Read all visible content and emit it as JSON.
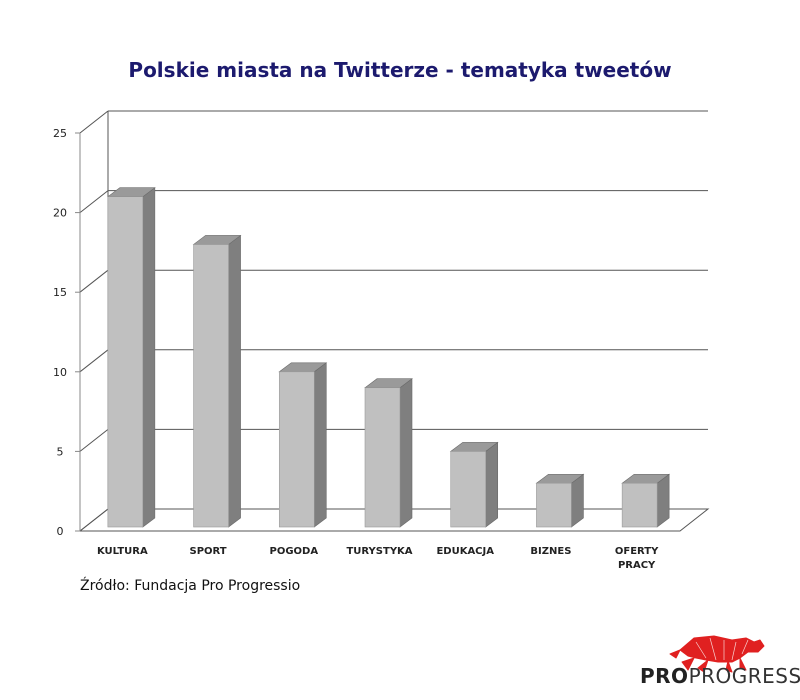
{
  "chart_data": {
    "type": "bar",
    "title": "Polskie miasta na Twitterze - tematyka tweetów",
    "categories": [
      "KULTURA",
      "SPORT",
      "POGODA",
      "TURYSTYKA",
      "EDUKACJA",
      "BIZNES",
      "OFERTY PRACY"
    ],
    "values": [
      21,
      18,
      10,
      9,
      5,
      3,
      3
    ],
    "ylim": [
      0,
      25
    ],
    "yticks": [
      0,
      5,
      10,
      15,
      20,
      25
    ],
    "grid": true,
    "style": "3d",
    "colors": {
      "bar_front": "#c0c0c0",
      "bar_side": "#7f7f7f",
      "bar_top": "#9a9a9a",
      "grid": "#555555",
      "title": "#1c1a6e"
    }
  },
  "source_note": "Źródło: Fundacja Pro Progressio",
  "logo": {
    "part1": "PRO",
    "part2": "PROGRESSIO",
    "icon": "red-panther-icon",
    "accent": "#e02020"
  }
}
